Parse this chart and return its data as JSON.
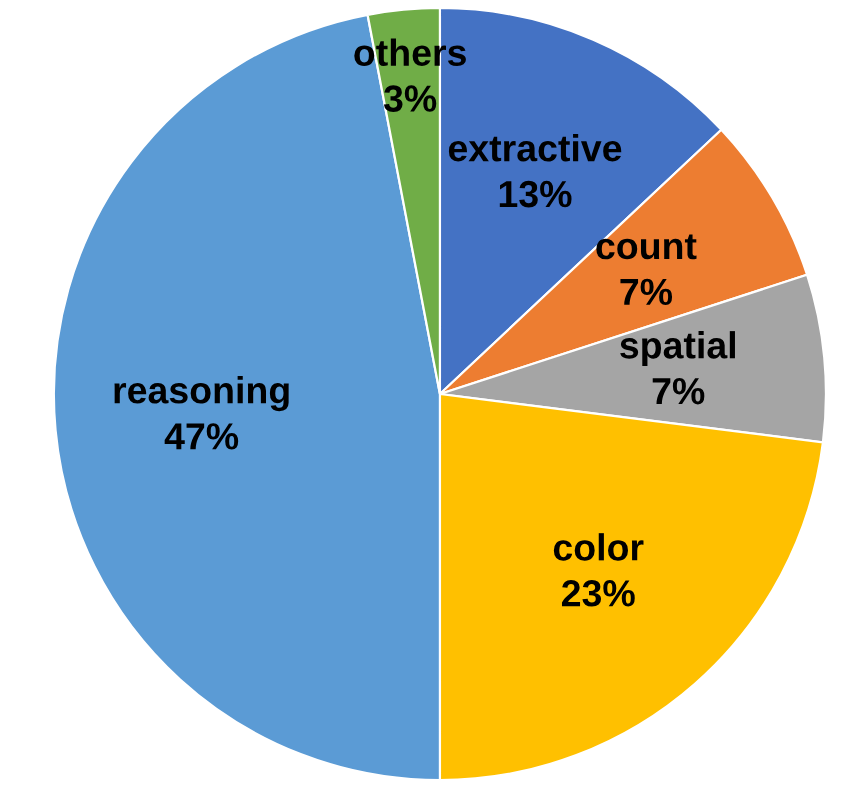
{
  "chart_data": {
    "type": "pie",
    "categories": [
      "extractive",
      "count",
      "spatial",
      "color",
      "reasoning",
      "others"
    ],
    "values": [
      13,
      7,
      7,
      23,
      47,
      3
    ],
    "value_labels": [
      "13%",
      "7%",
      "7%",
      "23%",
      "47%",
      "3%"
    ],
    "colors": [
      "#4472c4",
      "#ed7d31",
      "#a5a5a5",
      "#ffc000",
      "#5b9bd5",
      "#70ad47"
    ],
    "legend": false
  }
}
